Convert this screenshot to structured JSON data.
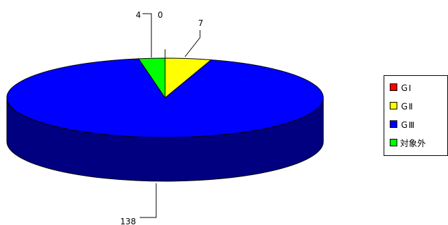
{
  "chart_data": {
    "type": "pie",
    "style": "3d",
    "legend_position": "right",
    "slices": [
      {
        "name": "ＧⅠ",
        "value": 0,
        "color": "#ff0000",
        "side_color": "#800000",
        "data_label": "0"
      },
      {
        "name": "ＧⅡ",
        "value": 7,
        "color": "#ffff00",
        "side_color": "#808000",
        "data_label": "7"
      },
      {
        "name": "ＧⅢ",
        "value": 138,
        "color": "#0000ff",
        "side_color": "#000080",
        "data_label": "138"
      },
      {
        "name": "対象外",
        "value": 4,
        "color": "#00ff00",
        "side_color": "#008000",
        "data_label": "4"
      }
    ]
  }
}
